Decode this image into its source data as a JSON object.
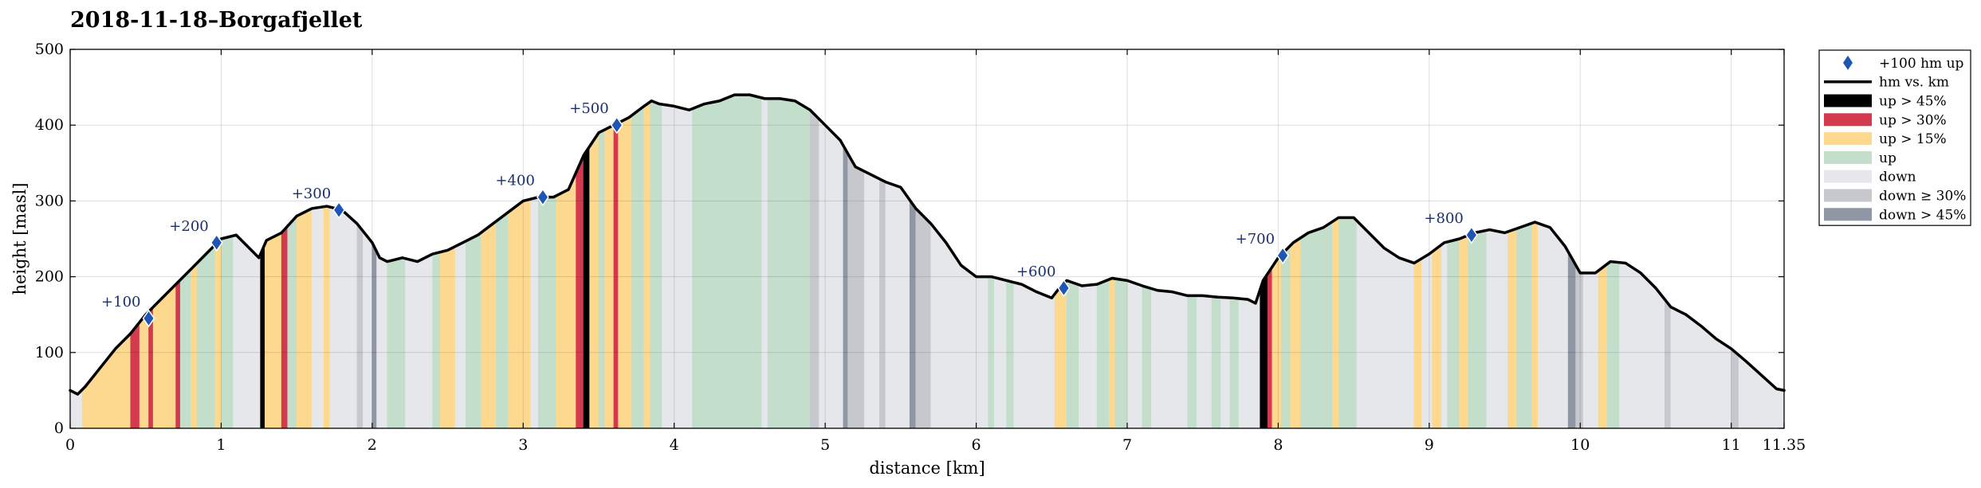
{
  "chart_data": {
    "type": "area",
    "title": "2018-11-18–Borgafjellet",
    "xlabel": "distance [km]",
    "ylabel": "height [masl]",
    "xlim": [
      0,
      11.35
    ],
    "ylim": [
      0,
      500
    ],
    "xticks": [
      0,
      1,
      2,
      3,
      4,
      5,
      6,
      7,
      8,
      9,
      10,
      11,
      11.35
    ],
    "xtick_labels": [
      "0",
      "1",
      "2",
      "3",
      "4",
      "5",
      "6",
      "7",
      "8",
      "9",
      "10",
      "11",
      "11.35"
    ],
    "yticks": [
      0,
      100,
      200,
      300,
      400,
      500
    ],
    "grid": true,
    "legend_position": "outside-right",
    "profile": {
      "x": [
        0,
        0.05,
        0.1,
        0.2,
        0.3,
        0.4,
        0.5,
        0.6,
        0.7,
        0.8,
        0.9,
        1.0,
        1.1,
        1.2,
        1.25,
        1.3,
        1.4,
        1.5,
        1.6,
        1.7,
        1.8,
        1.9,
        2.0,
        2.05,
        2.1,
        2.2,
        2.3,
        2.4,
        2.5,
        2.6,
        2.7,
        2.8,
        2.9,
        3.0,
        3.1,
        3.2,
        3.3,
        3.4,
        3.5,
        3.6,
        3.7,
        3.8,
        3.85,
        3.9,
        4.0,
        4.1,
        4.2,
        4.3,
        4.4,
        4.5,
        4.6,
        4.7,
        4.8,
        4.9,
        5.0,
        5.1,
        5.2,
        5.3,
        5.4,
        5.5,
        5.6,
        5.7,
        5.8,
        5.9,
        6.0,
        6.1,
        6.2,
        6.3,
        6.4,
        6.5,
        6.55,
        6.6,
        6.7,
        6.8,
        6.9,
        7.0,
        7.1,
        7.2,
        7.3,
        7.4,
        7.5,
        7.6,
        7.7,
        7.8,
        7.85,
        7.9,
        8.0,
        8.1,
        8.2,
        8.3,
        8.4,
        8.5,
        8.6,
        8.7,
        8.8,
        8.9,
        9.0,
        9.1,
        9.2,
        9.3,
        9.4,
        9.5,
        9.6,
        9.7,
        9.8,
        9.9,
        10.0,
        10.1,
        10.2,
        10.3,
        10.4,
        10.5,
        10.6,
        10.7,
        10.8,
        10.9,
        11.0,
        11.1,
        11.2,
        11.3,
        11.35
      ],
      "y": [
        50,
        45,
        55,
        80,
        105,
        125,
        150,
        170,
        190,
        210,
        230,
        250,
        255,
        235,
        225,
        248,
        258,
        280,
        290,
        293,
        288,
        270,
        245,
        225,
        220,
        225,
        220,
        230,
        235,
        245,
        255,
        270,
        285,
        300,
        305,
        305,
        315,
        360,
        390,
        400,
        410,
        425,
        432,
        428,
        425,
        420,
        428,
        432,
        440,
        440,
        435,
        435,
        432,
        420,
        400,
        380,
        345,
        335,
        325,
        318,
        290,
        270,
        245,
        215,
        200,
        200,
        195,
        190,
        180,
        172,
        185,
        195,
        188,
        190,
        198,
        195,
        188,
        182,
        180,
        175,
        175,
        173,
        172,
        170,
        165,
        195,
        225,
        245,
        258,
        265,
        278,
        278,
        258,
        238,
        225,
        218,
        230,
        245,
        250,
        258,
        262,
        258,
        265,
        272,
        265,
        240,
        205,
        205,
        220,
        218,
        205,
        185,
        160,
        150,
        135,
        118,
        105,
        88,
        70,
        52,
        50
      ]
    },
    "segments": [
      [
        0.0,
        0.08,
        "down"
      ],
      [
        0.08,
        0.4,
        "up > 15%"
      ],
      [
        0.4,
        0.46,
        "up > 30%"
      ],
      [
        0.46,
        0.52,
        "up > 15%"
      ],
      [
        0.52,
        0.55,
        "up > 30%"
      ],
      [
        0.55,
        0.7,
        "up > 15%"
      ],
      [
        0.7,
        0.73,
        "up > 30%"
      ],
      [
        0.73,
        0.8,
        "up"
      ],
      [
        0.8,
        0.84,
        "up > 15%"
      ],
      [
        0.84,
        0.96,
        "up"
      ],
      [
        0.96,
        1.0,
        "up > 15%"
      ],
      [
        1.0,
        1.08,
        "up"
      ],
      [
        1.08,
        1.26,
        "down"
      ],
      [
        1.26,
        1.29,
        "up > 45%"
      ],
      [
        1.29,
        1.4,
        "up > 15%"
      ],
      [
        1.4,
        1.44,
        "up > 30%"
      ],
      [
        1.44,
        1.5,
        "up"
      ],
      [
        1.5,
        1.6,
        "up > 15%"
      ],
      [
        1.6,
        1.68,
        "down"
      ],
      [
        1.68,
        1.72,
        "up > 15%"
      ],
      [
        1.72,
        1.9,
        "down"
      ],
      [
        1.9,
        1.94,
        "down ≥ 30%"
      ],
      [
        1.94,
        2.0,
        "down"
      ],
      [
        2.0,
        2.03,
        "down > 45%"
      ],
      [
        2.03,
        2.1,
        "down"
      ],
      [
        2.1,
        2.22,
        "up"
      ],
      [
        2.22,
        2.4,
        "down"
      ],
      [
        2.4,
        2.45,
        "up"
      ],
      [
        2.45,
        2.55,
        "up > 15%"
      ],
      [
        2.55,
        2.62,
        "down"
      ],
      [
        2.62,
        2.72,
        "up"
      ],
      [
        2.72,
        2.82,
        "up > 15%"
      ],
      [
        2.82,
        2.9,
        "up"
      ],
      [
        2.9,
        3.05,
        "up > 15%"
      ],
      [
        3.05,
        3.1,
        "down"
      ],
      [
        3.1,
        3.22,
        "up"
      ],
      [
        3.22,
        3.35,
        "up > 15%"
      ],
      [
        3.35,
        3.4,
        "up > 30%"
      ],
      [
        3.4,
        3.44,
        "up > 45%"
      ],
      [
        3.44,
        3.5,
        "up > 15%"
      ],
      [
        3.5,
        3.54,
        "up"
      ],
      [
        3.54,
        3.6,
        "up > 15%"
      ],
      [
        3.6,
        3.63,
        "up > 30%"
      ],
      [
        3.63,
        3.72,
        "up > 15%"
      ],
      [
        3.72,
        3.8,
        "up"
      ],
      [
        3.8,
        3.84,
        "up > 15%"
      ],
      [
        3.84,
        3.92,
        "up"
      ],
      [
        3.92,
        4.12,
        "down"
      ],
      [
        4.12,
        4.58,
        "up"
      ],
      [
        4.58,
        4.62,
        "down"
      ],
      [
        4.62,
        4.9,
        "up"
      ],
      [
        4.9,
        4.96,
        "down ≥ 30%"
      ],
      [
        4.96,
        5.12,
        "down"
      ],
      [
        5.12,
        5.15,
        "down > 45%"
      ],
      [
        5.15,
        5.26,
        "down ≥ 30%"
      ],
      [
        5.26,
        5.36,
        "down"
      ],
      [
        5.36,
        5.4,
        "down ≥ 30%"
      ],
      [
        5.4,
        5.56,
        "down"
      ],
      [
        5.56,
        5.6,
        "down > 45%"
      ],
      [
        5.6,
        5.7,
        "down ≥ 30%"
      ],
      [
        5.7,
        6.08,
        "down"
      ],
      [
        6.08,
        6.12,
        "up"
      ],
      [
        6.12,
        6.2,
        "down"
      ],
      [
        6.2,
        6.25,
        "up"
      ],
      [
        6.25,
        6.52,
        "down"
      ],
      [
        6.52,
        6.6,
        "up > 15%"
      ],
      [
        6.6,
        6.68,
        "up"
      ],
      [
        6.68,
        6.8,
        "down"
      ],
      [
        6.8,
        6.88,
        "up"
      ],
      [
        6.88,
        6.92,
        "up > 15%"
      ],
      [
        6.92,
        7.0,
        "up"
      ],
      [
        7.0,
        7.1,
        "down"
      ],
      [
        7.1,
        7.16,
        "up"
      ],
      [
        7.16,
        7.4,
        "down"
      ],
      [
        7.4,
        7.46,
        "up"
      ],
      [
        7.46,
        7.56,
        "down"
      ],
      [
        7.56,
        7.62,
        "up"
      ],
      [
        7.62,
        7.68,
        "down"
      ],
      [
        7.68,
        7.74,
        "up"
      ],
      [
        7.74,
        7.88,
        "down"
      ],
      [
        7.88,
        7.93,
        "up > 45%"
      ],
      [
        7.93,
        7.96,
        "up > 30%"
      ],
      [
        7.96,
        8.02,
        "up > 15%"
      ],
      [
        8.02,
        8.08,
        "up"
      ],
      [
        8.08,
        8.15,
        "up > 15%"
      ],
      [
        8.15,
        8.36,
        "up"
      ],
      [
        8.36,
        8.4,
        "up > 15%"
      ],
      [
        8.4,
        8.52,
        "up"
      ],
      [
        8.52,
        8.9,
        "down"
      ],
      [
        8.9,
        8.95,
        "up > 15%"
      ],
      [
        8.95,
        9.02,
        "down"
      ],
      [
        9.02,
        9.08,
        "up > 15%"
      ],
      [
        9.08,
        9.12,
        "down"
      ],
      [
        9.12,
        9.2,
        "up"
      ],
      [
        9.2,
        9.26,
        "up > 15%"
      ],
      [
        9.26,
        9.38,
        "up"
      ],
      [
        9.38,
        9.52,
        "down"
      ],
      [
        9.52,
        9.58,
        "up > 15%"
      ],
      [
        9.58,
        9.68,
        "up"
      ],
      [
        9.68,
        9.72,
        "up > 15%"
      ],
      [
        9.72,
        9.92,
        "down"
      ],
      [
        9.92,
        9.97,
        "down > 45%"
      ],
      [
        9.97,
        10.02,
        "down ≥ 30%"
      ],
      [
        10.02,
        10.12,
        "down"
      ],
      [
        10.12,
        10.18,
        "up > 15%"
      ],
      [
        10.18,
        10.26,
        "up"
      ],
      [
        10.26,
        10.56,
        "down"
      ],
      [
        10.56,
        10.6,
        "down ≥ 30%"
      ],
      [
        10.6,
        11.0,
        "down"
      ],
      [
        11.0,
        11.05,
        "down ≥ 30%"
      ],
      [
        11.05,
        11.35,
        "down"
      ]
    ],
    "markers": [
      {
        "x": 0.52,
        "y": 145,
        "label": "+100"
      },
      {
        "x": 0.97,
        "y": 245,
        "label": "+200"
      },
      {
        "x": 1.78,
        "y": 288,
        "label": "+300"
      },
      {
        "x": 3.13,
        "y": 305,
        "label": "+400"
      },
      {
        "x": 3.62,
        "y": 400,
        "label": "+500"
      },
      {
        "x": 6.58,
        "y": 185,
        "label": "+600"
      },
      {
        "x": 8.03,
        "y": 228,
        "label": "+700"
      },
      {
        "x": 9.28,
        "y": 255,
        "label": "+800"
      }
    ],
    "legend": [
      {
        "label": "+100 hm up",
        "kind": "marker",
        "color": "#1f56b4"
      },
      {
        "label": "hm vs. km",
        "kind": "line",
        "color": "#000000"
      },
      {
        "label": "up > 45%",
        "kind": "patch",
        "color": "#000000"
      },
      {
        "label": "up > 30%",
        "kind": "patch",
        "color": "#d33a4e"
      },
      {
        "label": "up > 15%",
        "kind": "patch",
        "color": "#fcd98f"
      },
      {
        "label": "up",
        "kind": "patch",
        "color": "#c3dfcc"
      },
      {
        "label": "down",
        "kind": "patch",
        "color": "#e6e7ea"
      },
      {
        "label": "down ≥ 30%",
        "kind": "patch",
        "color": "#c7c8ce"
      },
      {
        "label": "down > 45%",
        "kind": "patch",
        "color": "#8f96a4"
      }
    ],
    "category_colors": {
      "up > 45%": "#000000",
      "up > 30%": "#d33a4e",
      "up > 15%": "#fcd98f",
      "up": "#c3dfcc",
      "down": "#e6e7ea",
      "down ≥ 30%": "#c7c8ce",
      "down > 45%": "#8f96a4"
    }
  }
}
